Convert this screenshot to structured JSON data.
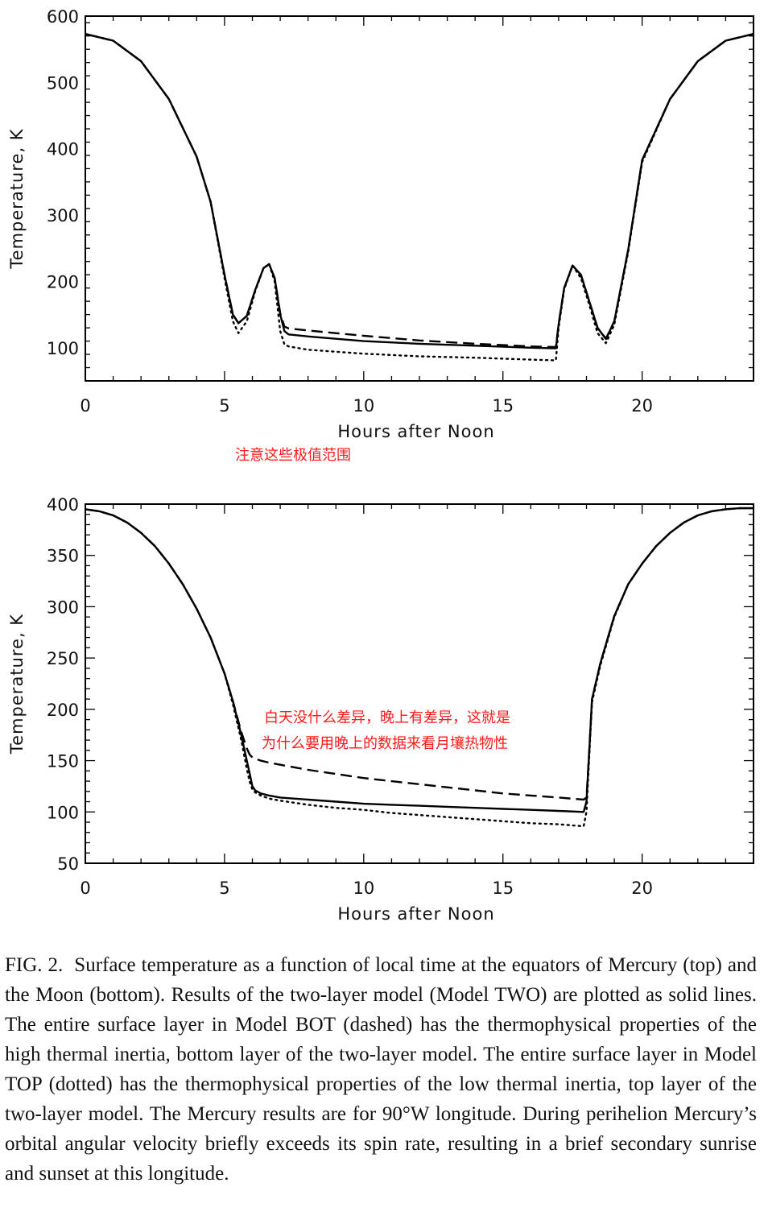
{
  "chart_data": [
    {
      "type": "line",
      "title": "",
      "xlabel": "Hours after Noon",
      "ylabel": "Temperature, K",
      "xlim": [
        0,
        24
      ],
      "ylim": [
        50,
        600
      ],
      "xticks": [
        0,
        5,
        10,
        15,
        20
      ],
      "yticks": [
        100,
        200,
        300,
        400,
        500,
        600
      ],
      "grid": false,
      "series": [
        {
          "style": "solid",
          "x": [
            0,
            1,
            2,
            3,
            4,
            4.5,
            5,
            5.3,
            5.5,
            5.8,
            6.1,
            6.4,
            6.6,
            6.8,
            7.0,
            7.15,
            7.3,
            8,
            10,
            12,
            14,
            16,
            16.9,
            17.0,
            17.2,
            17.5,
            17.8,
            18.1,
            18.4,
            18.7,
            19,
            19.5,
            20,
            21,
            22,
            23,
            24
          ],
          "y": [
            573,
            563,
            532,
            475,
            388,
            320,
            210,
            150,
            137,
            148,
            187,
            220,
            226,
            205,
            150,
            125,
            120,
            117,
            110,
            106,
            103,
            100,
            99,
            135,
            190,
            224,
            210,
            170,
            130,
            113,
            140,
            248,
            383,
            475,
            532,
            563,
            573
          ]
        },
        {
          "style": "dashed",
          "x": [
            0,
            1,
            2,
            3,
            4,
            4.5,
            5,
            5.3,
            5.5,
            5.8,
            6.1,
            6.4,
            6.6,
            6.8,
            7.0,
            7.15,
            7.3,
            8,
            10,
            12,
            14,
            16,
            16.9,
            17.0,
            17.2,
            17.5,
            17.8,
            18.1,
            18.4,
            18.7,
            19,
            19.5,
            20,
            21,
            22,
            23,
            24
          ],
          "y": [
            573,
            563,
            532,
            475,
            388,
            320,
            210,
            150,
            137,
            148,
            187,
            220,
            226,
            205,
            152,
            132,
            129,
            126,
            118,
            111,
            106,
            102,
            101,
            135,
            190,
            224,
            210,
            170,
            130,
            114,
            140,
            248,
            383,
            475,
            532,
            563,
            573
          ]
        },
        {
          "style": "dotted",
          "x": [
            0,
            1,
            2,
            3,
            4,
            4.5,
            5,
            5.3,
            5.5,
            5.8,
            6.1,
            6.4,
            6.6,
            6.8,
            7.0,
            7.15,
            7.3,
            8,
            10,
            12,
            14,
            16,
            16.9,
            17.0,
            17.2,
            17.5,
            17.8,
            18.1,
            18.4,
            18.7,
            19,
            19.5,
            20,
            21,
            22,
            23,
            24
          ],
          "y": [
            573,
            563,
            532,
            475,
            388,
            320,
            205,
            140,
            122,
            140,
            185,
            220,
            226,
            200,
            125,
            105,
            102,
            97,
            91,
            87,
            85,
            82,
            81,
            130,
            188,
            224,
            205,
            165,
            122,
            107,
            135,
            245,
            380,
            475,
            532,
            563,
            573
          ]
        }
      ]
    },
    {
      "type": "line",
      "title": "",
      "xlabel": "Hours after Noon",
      "ylabel": "Temperature, K",
      "xlim": [
        0,
        24
      ],
      "ylim": [
        50,
        400
      ],
      "xticks": [
        0,
        5,
        10,
        15,
        20
      ],
      "yticks": [
        50,
        100,
        150,
        200,
        250,
        300,
        350,
        400
      ],
      "grid": false,
      "series": [
        {
          "style": "solid",
          "x": [
            0,
            0.5,
            1,
            1.5,
            2,
            2.5,
            3,
            3.5,
            4,
            4.5,
            5,
            5.3,
            5.6,
            5.8,
            5.9,
            6.0,
            6.1,
            6.3,
            6.6,
            7,
            8,
            9,
            10,
            11,
            12,
            13,
            14,
            15,
            16,
            17,
            17.9,
            18.0,
            18.1,
            18.2,
            18.5,
            19,
            19.5,
            20,
            20.5,
            21,
            21.5,
            22,
            22.5,
            23,
            23.5,
            24
          ],
          "y": [
            395,
            393,
            389,
            382,
            372,
            359,
            342,
            322,
            298,
            270,
            235,
            208,
            175,
            150,
            138,
            125,
            121,
            118,
            116,
            114,
            112,
            110,
            108,
            107,
            106,
            105,
            104,
            103,
            102,
            101,
            100,
            110,
            160,
            210,
            245,
            291,
            322,
            342,
            359,
            372,
            382,
            389,
            393,
            395,
            396,
            396
          ]
        },
        {
          "style": "dashed",
          "x": [
            0,
            0.5,
            1,
            1.5,
            2,
            2.5,
            3,
            3.5,
            4,
            4.5,
            5,
            5.3,
            5.6,
            5.8,
            5.9,
            6.0,
            6.1,
            6.3,
            6.6,
            7,
            8,
            9,
            10,
            11,
            12,
            13,
            14,
            15,
            16,
            17,
            17.9,
            18.0,
            18.1,
            18.2,
            18.5,
            19,
            19.5,
            20,
            20.5,
            21,
            21.5,
            22,
            22.5,
            23,
            23.5,
            24
          ],
          "y": [
            395,
            393,
            389,
            382,
            372,
            359,
            342,
            322,
            298,
            270,
            235,
            208,
            178,
            162,
            156,
            153,
            152,
            150,
            148,
            146,
            141,
            137,
            133,
            130,
            127,
            124,
            121,
            118,
            116,
            114,
            112,
            114,
            160,
            210,
            245,
            291,
            322,
            342,
            359,
            372,
            382,
            389,
            393,
            395,
            396,
            396
          ]
        },
        {
          "style": "dotted",
          "x": [
            0,
            0.5,
            1,
            1.5,
            2,
            2.5,
            3,
            3.5,
            4,
            4.5,
            5,
            5.3,
            5.6,
            5.8,
            5.9,
            6.0,
            6.1,
            6.3,
            6.6,
            7,
            8,
            9,
            10,
            11,
            12,
            13,
            14,
            15,
            16,
            17,
            17.9,
            18.0,
            18.1,
            18.2,
            18.5,
            19,
            19.5,
            20,
            20.5,
            21,
            21.5,
            22,
            22.5,
            23,
            23.5,
            24
          ],
          "y": [
            395,
            393,
            389,
            382,
            372,
            359,
            342,
            322,
            298,
            270,
            235,
            205,
            170,
            142,
            130,
            122,
            119,
            116,
            113,
            111,
            107,
            104,
            102,
            99,
            97,
            95,
            93,
            91,
            89,
            88,
            86,
            100,
            155,
            207,
            243,
            290,
            322,
            342,
            359,
            372,
            382,
            389,
            393,
            395,
            396,
            396
          ]
        }
      ]
    }
  ],
  "annotations": {
    "top_note": "注意这些极值范围",
    "bottom_note_line1": "白天没什么差异，晚上有差异，这就是",
    "bottom_note_line2": "为什么要用晚上的数据来看月壤热物性"
  },
  "caption": {
    "figure_label": "FIG. 2.",
    "text": "Surface temperature as a function of local time at the equators of Mercury (top) and the Moon (bottom). Results of the two-layer model (Model TWO) are plotted as solid lines. The entire surface layer in Model BOT (dashed) has the thermophysical properties of the high thermal inertia, bottom layer of the two-layer model. The entire surface layer in Model TOP (dotted) has the thermophysical properties of the low thermal inertia, top layer of the two-layer model. The Mercury results are for 90°W longitude. During perihelion Mercury’s orbital angular velocity briefly exceeds its spin rate, resulting in a brief secondary sunrise and sunset at this longitude."
  }
}
